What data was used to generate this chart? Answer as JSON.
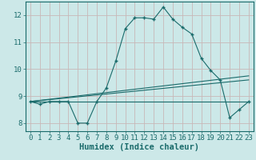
{
  "xlabel": "Humidex (Indice chaleur)",
  "ylabel": "",
  "background_color": "#cce8e8",
  "grid_color": "#c8b8b8",
  "line_color": "#1a6b6b",
  "xlim": [
    -0.5,
    23.5
  ],
  "ylim": [
    7.7,
    12.5
  ],
  "yticks": [
    8,
    9,
    10,
    11,
    12
  ],
  "xticks": [
    0,
    1,
    2,
    3,
    4,
    5,
    6,
    7,
    8,
    9,
    10,
    11,
    12,
    13,
    14,
    15,
    16,
    17,
    18,
    19,
    20,
    21,
    22,
    23
  ],
  "series1_x": [
    0,
    1,
    2,
    3,
    4,
    5,
    6,
    7,
    8,
    9,
    10,
    11,
    12,
    13,
    14,
    15,
    16,
    17,
    18,
    19,
    20,
    21,
    22,
    23
  ],
  "series1_y": [
    8.8,
    8.7,
    8.8,
    8.8,
    8.8,
    8.0,
    8.0,
    8.8,
    9.3,
    10.3,
    11.5,
    11.9,
    11.9,
    11.85,
    12.3,
    11.85,
    11.55,
    11.3,
    10.4,
    9.95,
    9.6,
    8.2,
    8.5,
    8.8
  ],
  "series2_x": [
    0,
    23
  ],
  "series2_y": [
    8.8,
    8.8
  ],
  "series3_x": [
    0,
    23
  ],
  "series3_y": [
    8.8,
    9.6
  ],
  "series4_x": [
    0,
    23
  ],
  "series4_y": [
    8.8,
    9.75
  ],
  "font_family": "monospace",
  "tick_fontsize": 6.5,
  "label_fontsize": 7.5
}
